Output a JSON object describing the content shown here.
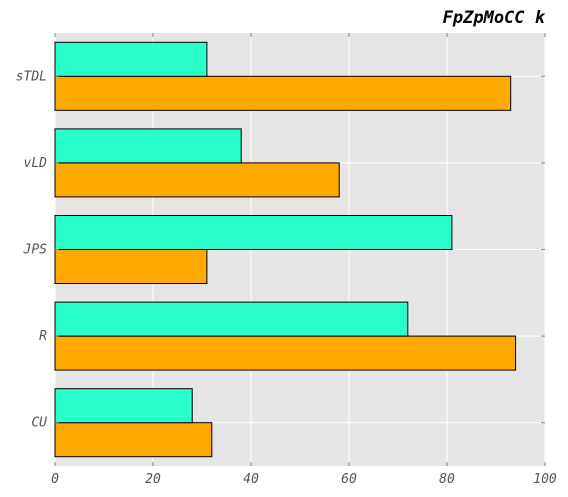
{
  "chart_data": {
    "type": "bar",
    "orientation": "horizontal",
    "title": "FpZpMoCC k",
    "xlabel": "",
    "ylabel": "",
    "categories": [
      "CU",
      "R",
      "JPS",
      "vLD",
      "sTDL"
    ],
    "series": [
      {
        "values": [
          32,
          94,
          31,
          58,
          93
        ],
        "color": "#ffaa00"
      },
      {
        "values": [
          28,
          72,
          81,
          38,
          31
        ],
        "color": "#2affcc"
      }
    ],
    "xlim": [
      0,
      100
    ],
    "xticks": [
      0,
      20,
      40,
      60,
      80,
      100
    ],
    "grid": true,
    "legend": "none",
    "background_color": "#e5e5e5"
  }
}
